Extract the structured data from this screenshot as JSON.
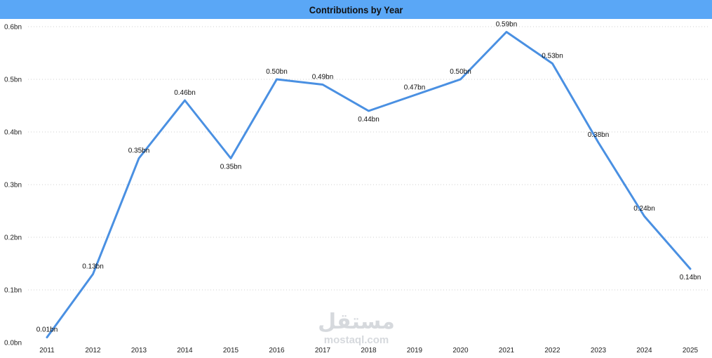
{
  "chart_data": {
    "type": "line",
    "title": "Contributions by Year",
    "xlabel": "",
    "ylabel": "",
    "categories": [
      "2011",
      "2012",
      "2013",
      "2014",
      "2015",
      "2016",
      "2017",
      "2018",
      "2019",
      "2020",
      "2021",
      "2022",
      "2023",
      "2024",
      "2025"
    ],
    "series": [
      {
        "values": [
          0.01,
          0.13,
          0.35,
          0.46,
          0.35,
          0.5,
          0.49,
          0.44,
          0.47,
          0.5,
          0.59,
          0.53,
          0.38,
          0.24,
          0.14
        ],
        "data_labels": [
          "0.01bn",
          "0.13bn",
          "0.35bn",
          "0.46bn",
          "0.35bn",
          "0.50bn",
          "0.49bn",
          "0.44bn",
          "0.47bn",
          "0.50bn",
          "0.59bn",
          "0.53bn",
          "0.38bn",
          "0.24bn",
          "0.14bn"
        ],
        "color": "#4a90e2"
      }
    ],
    "ylim": [
      0,
      0.6
    ],
    "yticks": [
      0,
      0.1,
      0.2,
      0.3,
      0.4,
      0.5,
      0.6
    ],
    "ytick_labels": [
      "0.0bn",
      "0.1bn",
      "0.2bn",
      "0.3bn",
      "0.4bn",
      "0.5bn",
      "0.6bn"
    ],
    "grid": true,
    "legend": "none",
    "title_bar_color": "#5aa7f6"
  },
  "watermark": {
    "arabic": "مستقل",
    "latin": "mostaql.com"
  }
}
